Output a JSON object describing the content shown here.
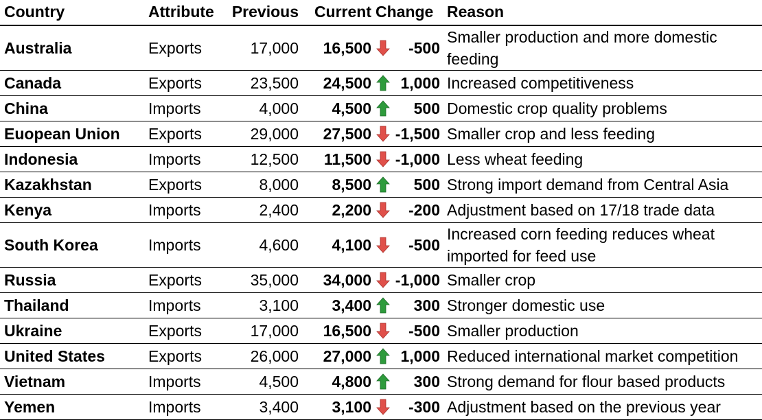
{
  "headers": {
    "country": "Country",
    "attribute": "Attribute",
    "previous": "Previous",
    "current": "Current",
    "change": "Change",
    "reason": "Reason"
  },
  "colors": {
    "up": "#2e9b3c",
    "down": "#e0504a"
  },
  "rows": [
    {
      "country": "Australia",
      "attribute": "Exports",
      "previous": "17,000",
      "current": "16,500",
      "direction": "down",
      "change": "-500",
      "reason": "Smaller production and more domestic feeding"
    },
    {
      "country": "Canada",
      "attribute": "Exports",
      "previous": "23,500",
      "current": "24,500",
      "direction": "up",
      "change": "1,000",
      "reason": "Increased competitiveness"
    },
    {
      "country": "China",
      "attribute": "Imports",
      "previous": "4,000",
      "current": "4,500",
      "direction": "up",
      "change": "500",
      "reason": "Domestic crop quality problems"
    },
    {
      "country": "Euopean Union",
      "attribute": "Exports",
      "previous": "29,000",
      "current": "27,500",
      "direction": "down",
      "change": "-1,500",
      "reason": "Smaller crop and less feeding"
    },
    {
      "country": "Indonesia",
      "attribute": "Imports",
      "previous": "12,500",
      "current": "11,500",
      "direction": "down",
      "change": "-1,000",
      "reason": "Less wheat feeding"
    },
    {
      "country": "Kazakhstan",
      "attribute": "Exports",
      "previous": "8,000",
      "current": "8,500",
      "direction": "up",
      "change": "500",
      "reason": "Strong import demand from Central Asia"
    },
    {
      "country": "Kenya",
      "attribute": "Imports",
      "previous": "2,400",
      "current": "2,200",
      "direction": "down",
      "change": "-200",
      "reason": "Adjustment based on 17/18 trade data"
    },
    {
      "country": "South Korea",
      "attribute": "Imports",
      "previous": "4,600",
      "current": "4,100",
      "direction": "down",
      "change": "-500",
      "reason": "Increased corn feeding reduces wheat imported for feed use"
    },
    {
      "country": "Russia",
      "attribute": "Exports",
      "previous": "35,000",
      "current": "34,000",
      "direction": "down",
      "change": "-1,000",
      "reason": "Smaller crop"
    },
    {
      "country": "Thailand",
      "attribute": "Imports",
      "previous": "3,100",
      "current": "3,400",
      "direction": "up",
      "change": "300",
      "reason": "Stronger domestic use"
    },
    {
      "country": "Ukraine",
      "attribute": "Exports",
      "previous": "17,000",
      "current": "16,500",
      "direction": "down",
      "change": "-500",
      "reason": "Smaller production"
    },
    {
      "country": "United States",
      "attribute": "Exports",
      "previous": "26,000",
      "current": "27,000",
      "direction": "up",
      "change": "1,000",
      "reason": "Reduced international market competition"
    },
    {
      "country": "Vietnam",
      "attribute": "Imports",
      "previous": "4,500",
      "current": "4,800",
      "direction": "up",
      "change": "300",
      "reason": "Strong demand for flour based products"
    },
    {
      "country": "Yemen",
      "attribute": "Imports",
      "previous": "3,400",
      "current": "3,100",
      "direction": "down",
      "change": "-300",
      "reason": "Adjustment based on the previous year"
    }
  ]
}
